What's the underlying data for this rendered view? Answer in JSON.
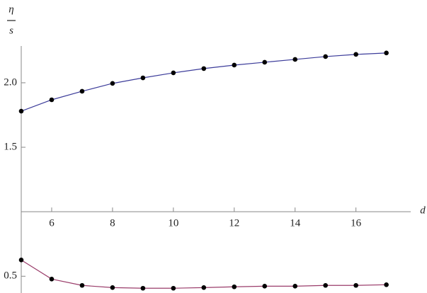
{
  "chart_data": {
    "type": "line",
    "ylabel": {
      "numerator": "η",
      "denominator": "s"
    },
    "xlabel": "d",
    "x": [
      5,
      6,
      7,
      8,
      9,
      10,
      11,
      12,
      13,
      14,
      15,
      16,
      17
    ],
    "series": [
      {
        "color": "#3c3c9a",
        "values": [
          1.78,
          1.868,
          1.934,
          1.995,
          2.038,
          2.077,
          2.11,
          2.137,
          2.159,
          2.181,
          2.203,
          2.22,
          2.231
        ]
      },
      {
        "color": "#9a3c6a",
        "values": [
          0.626,
          0.478,
          0.429,
          0.412,
          0.407,
          0.407,
          0.412,
          0.418,
          0.423,
          0.423,
          0.429,
          0.429,
          0.434
        ]
      }
    ],
    "markers": true,
    "xlim": [
      5,
      17.8
    ],
    "ylim": [
      0.37,
      2.285
    ],
    "origin": [
      5,
      1
    ],
    "xticks": [
      6,
      8,
      10,
      12,
      14,
      16
    ],
    "yticks": [
      0.5,
      1.5,
      {
        "value": 2,
        "label": "2.0"
      }
    ]
  }
}
